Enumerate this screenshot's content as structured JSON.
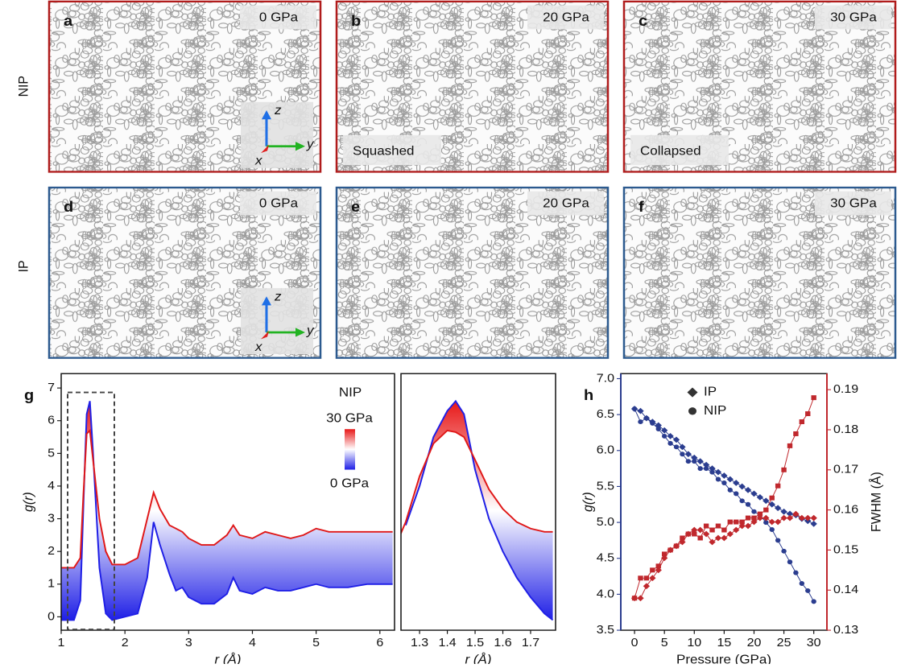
{
  "row_labels": [
    "NIP",
    "IP"
  ],
  "panels": [
    {
      "letter": "a",
      "pressure": "0 GPa",
      "frame_color": "#b01c1c",
      "axes": [
        "z",
        "y",
        "x"
      ]
    },
    {
      "letter": "b",
      "pressure": "20 GPa",
      "frame_color": "#b01c1c",
      "note": "Squashed"
    },
    {
      "letter": "c",
      "pressure": "30 GPa",
      "frame_color": "#b01c1c",
      "note": "Collapsed"
    },
    {
      "letter": "d",
      "pressure": "0 GPa",
      "frame_color": "#2c5a8f",
      "axes": [
        "z",
        "y",
        "x"
      ]
    },
    {
      "letter": "e",
      "pressure": "20 GPa",
      "frame_color": "#2c5a8f"
    },
    {
      "letter": "f",
      "pressure": "30 GPa",
      "frame_color": "#2c5a8f"
    }
  ],
  "chart_data": [
    {
      "type": "line",
      "panel_label": "g",
      "xlabel": "r (Å)",
      "ylabel": "g(r)",
      "legend_title": "NIP",
      "x": [
        1.0,
        1.2,
        1.3,
        1.35,
        1.4,
        1.45,
        1.5,
        1.6,
        1.7,
        1.8,
        2.0,
        2.2,
        2.35,
        2.45,
        2.55,
        2.7,
        2.8,
        2.9,
        3.0,
        3.2,
        3.4,
        3.6,
        3.7,
        3.8,
        4.0,
        4.2,
        4.4,
        4.6,
        4.8,
        5.0,
        5.2,
        5.5,
        5.8,
        6.2
      ],
      "series": [
        {
          "name": "0 GPa",
          "color": "#1f1fe6",
          "values": [
            -0.1,
            -0.1,
            0.5,
            3.5,
            6.2,
            6.6,
            5.0,
            1.5,
            0.1,
            -0.1,
            0,
            0.1,
            1.2,
            2.9,
            2.2,
            1.3,
            0.8,
            0.9,
            0.6,
            0.4,
            0.4,
            0.7,
            1.2,
            0.8,
            0.7,
            0.9,
            0.8,
            0.8,
            0.9,
            1.0,
            0.9,
            0.9,
            1.0,
            1.0
          ]
        },
        {
          "name": "30 GPa",
          "color": "#e01818",
          "values": [
            1.5,
            1.5,
            1.8,
            3.8,
            5.6,
            5.7,
            4.8,
            3.0,
            2.0,
            1.6,
            1.6,
            1.8,
            3.0,
            3.8,
            3.3,
            2.8,
            2.7,
            2.6,
            2.4,
            2.2,
            2.2,
            2.5,
            2.8,
            2.5,
            2.4,
            2.6,
            2.5,
            2.4,
            2.5,
            2.7,
            2.6,
            2.6,
            2.6,
            2.6
          ]
        }
      ],
      "xlim": [
        1,
        6.23
      ],
      "xticks": [
        1,
        2,
        3,
        4,
        5,
        6
      ],
      "ylim": [
        -0.41,
        7.44
      ],
      "yticks": [
        0,
        1,
        2,
        3,
        4,
        5,
        6,
        7
      ]
    },
    {
      "type": "line",
      "xlabel": "r (Å)",
      "x": [
        1.22,
        1.25,
        1.3,
        1.35,
        1.4,
        1.43,
        1.46,
        1.5,
        1.55,
        1.6,
        1.65,
        1.7,
        1.75,
        1.78
      ],
      "series": [
        {
          "color": "#1f1fe6",
          "values": [
            null,
            2.8,
            4.0,
            5.5,
            6.3,
            6.6,
            6.2,
            4.5,
            3.0,
            2.0,
            1.2,
            0.6,
            0.1,
            -0.1
          ]
        },
        {
          "color": "#e01818",
          "values": [
            2.3,
            2.9,
            4.3,
            5.3,
            5.7,
            5.65,
            5.5,
            4.8,
            3.9,
            3.3,
            2.9,
            2.7,
            2.6,
            2.6
          ]
        }
      ],
      "xlim": [
        1.233,
        1.79
      ],
      "xticks": [
        1.3,
        1.4,
        1.5,
        1.6,
        1.7
      ],
      "ylim": [
        -0.41,
        7.44
      ]
    },
    {
      "type": "scatter",
      "panel_label": "h",
      "xlabel": "Pressure (GPa)",
      "ylabel": "g(r)",
      "y2label": "FWHM (Å)",
      "y_color": "#2b3d8f",
      "y2_color": "#c0282d",
      "legend": [
        {
          "name": "IP",
          "marker": "diamond"
        },
        {
          "name": "NIP",
          "marker": "circle"
        }
      ],
      "x": [
        0,
        1,
        2,
        3,
        4,
        5,
        6,
        7,
        8,
        9,
        10,
        11,
        12,
        13,
        14,
        15,
        16,
        17,
        18,
        19,
        20,
        21,
        22,
        23,
        24,
        25,
        26,
        27,
        28,
        29,
        30
      ],
      "series": [
        {
          "marker": "diamond",
          "color": "#2b3d8f",
          "values": [
            6.58,
            6.55,
            6.45,
            6.4,
            6.35,
            6.28,
            6.2,
            6.15,
            6.05,
            5.95,
            5.9,
            5.85,
            5.8,
            5.75,
            5.7,
            5.65,
            5.6,
            5.55,
            5.5,
            5.45,
            5.4,
            5.35,
            5.3,
            5.25,
            5.2,
            5.15,
            5.12,
            5.1,
            5.05,
            5.02,
            4.98
          ]
        },
        {
          "marker": "circle",
          "color": "#2b3d8f",
          "values": [
            6.58,
            6.4,
            6.45,
            6.38,
            6.3,
            6.2,
            6.1,
            6.05,
            5.95,
            5.85,
            5.85,
            5.75,
            5.75,
            5.7,
            5.6,
            5.55,
            5.45,
            5.4,
            5.3,
            5.25,
            5.15,
            5.1,
            5.0,
            4.9,
            4.75,
            4.6,
            4.45,
            4.3,
            4.15,
            4.05,
            3.9
          ]
        },
        {
          "marker": "square",
          "color": "#c0282d",
          "axis": "y2",
          "values": [
            0.138,
            0.143,
            0.143,
            0.145,
            0.146,
            0.149,
            0.15,
            0.151,
            0.153,
            0.154,
            0.154,
            0.153,
            0.156,
            0.155,
            0.156,
            0.155,
            0.157,
            0.157,
            0.157,
            0.158,
            0.158,
            0.159,
            0.16,
            0.163,
            0.166,
            0.17,
            0.176,
            0.179,
            0.182,
            0.184,
            0.188
          ]
        },
        {
          "marker": "diamond",
          "color": "#c0282d",
          "axis": "y2",
          "values": [
            0.138,
            0.138,
            0.141,
            0.143,
            0.145,
            0.148,
            0.15,
            0.151,
            0.152,
            0.154,
            0.155,
            0.155,
            0.154,
            0.152,
            0.153,
            0.153,
            0.154,
            0.155,
            0.156,
            0.156,
            0.157,
            0.158,
            0.158,
            0.157,
            0.157,
            0.158,
            0.158,
            0.159,
            0.158,
            0.158,
            0.158
          ]
        }
      ],
      "xlim": [
        -2.3,
        32.2
      ],
      "xticks": [
        0,
        5,
        10,
        15,
        20,
        25,
        30
      ],
      "ylim": [
        3.5,
        7.07
      ],
      "yticks": [
        3.5,
        {
          "value": 4,
          "label": "4.0"
        },
        4.5,
        {
          "value": 5,
          "label": "5.0"
        },
        5.5,
        {
          "value": 6,
          "label": "6.0"
        },
        6.5,
        {
          "value": 7,
          "label": "7.0"
        }
      ],
      "y2lim": [
        0.13,
        0.194
      ],
      "y2ticks": [
        0.13,
        0.14,
        0.15,
        0.16,
        0.17,
        0.18,
        0.19
      ]
    }
  ]
}
